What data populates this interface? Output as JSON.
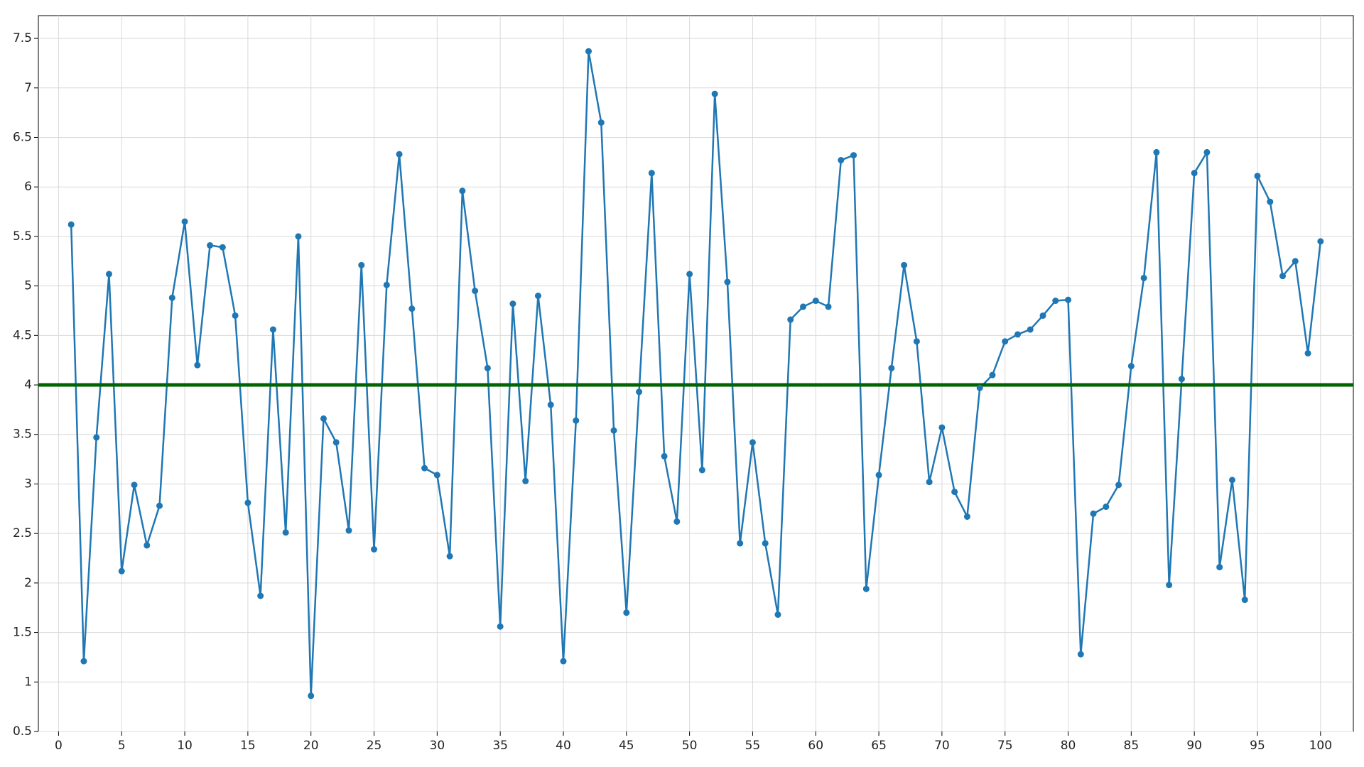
{
  "chart_data": {
    "type": "line",
    "x": [
      1,
      2,
      3,
      4,
      5,
      6,
      7,
      8,
      9,
      10,
      11,
      12,
      13,
      14,
      15,
      16,
      17,
      18,
      19,
      20,
      21,
      22,
      23,
      24,
      25,
      26,
      27,
      28,
      29,
      30,
      31,
      32,
      33,
      34,
      35,
      36,
      37,
      38,
      39,
      40,
      41,
      42,
      43,
      44,
      45,
      46,
      47,
      48,
      49,
      50,
      51,
      52,
      53,
      54,
      55,
      56,
      57,
      58,
      59,
      60,
      61,
      62,
      63,
      64,
      65,
      66,
      67,
      68,
      69,
      70,
      71,
      72,
      73,
      74,
      75,
      76,
      77,
      78,
      79,
      80,
      81,
      82,
      83,
      84,
      85,
      86,
      87,
      88,
      89,
      90,
      91,
      92,
      93,
      94,
      95,
      96,
      97,
      98,
      99,
      100
    ],
    "series": [
      {
        "name": "series",
        "color": "#1f77b4",
        "values": [
          5.62,
          1.21,
          3.47,
          5.12,
          2.12,
          2.99,
          2.38,
          2.78,
          4.88,
          5.65,
          4.2,
          5.41,
          5.39,
          4.7,
          2.81,
          1.87,
          4.56,
          2.51,
          5.5,
          0.86,
          3.66,
          3.42,
          2.53,
          5.21,
          2.34,
          5.01,
          6.33,
          4.77,
          3.16,
          3.09,
          2.27,
          5.96,
          4.95,
          4.17,
          1.56,
          4.82,
          3.03,
          4.9,
          3.8,
          1.21,
          3.64,
          7.37,
          6.65,
          3.54,
          1.7,
          3.93,
          6.14,
          3.28,
          2.62,
          5.12,
          3.14,
          6.94,
          5.04,
          2.4,
          3.42,
          2.4,
          1.68,
          4.66,
          4.79,
          4.85,
          4.79,
          6.27,
          6.32,
          1.94,
          3.09,
          4.17,
          5.21,
          4.44,
          3.02,
          3.57,
          2.92,
          2.67,
          3.97,
          4.1,
          4.44,
          4.51,
          4.56,
          4.7,
          4.85,
          4.86,
          1.28,
          2.7,
          2.77,
          2.99,
          4.19,
          5.08,
          6.35,
          1.98,
          4.06,
          6.14,
          6.35,
          2.16,
          3.04,
          1.83,
          6.11,
          5.85,
          5.1,
          5.25,
          4.32,
          5.45
        ]
      }
    ],
    "hline": 4,
    "hline_color": "#006400",
    "xlim": [
      -1.6,
      102.6
    ],
    "ylim": [
      0.5,
      7.73
    ],
    "xticks": [
      0,
      5,
      10,
      15,
      20,
      25,
      30,
      35,
      40,
      45,
      50,
      55,
      60,
      65,
      70,
      75,
      80,
      85,
      90,
      95,
      100
    ],
    "yticks": [
      0.5,
      1,
      1.5,
      2,
      2.5,
      3,
      3.5,
      4,
      4.5,
      5,
      5.5,
      6,
      6.5,
      7,
      7.5
    ],
    "grid": true
  }
}
